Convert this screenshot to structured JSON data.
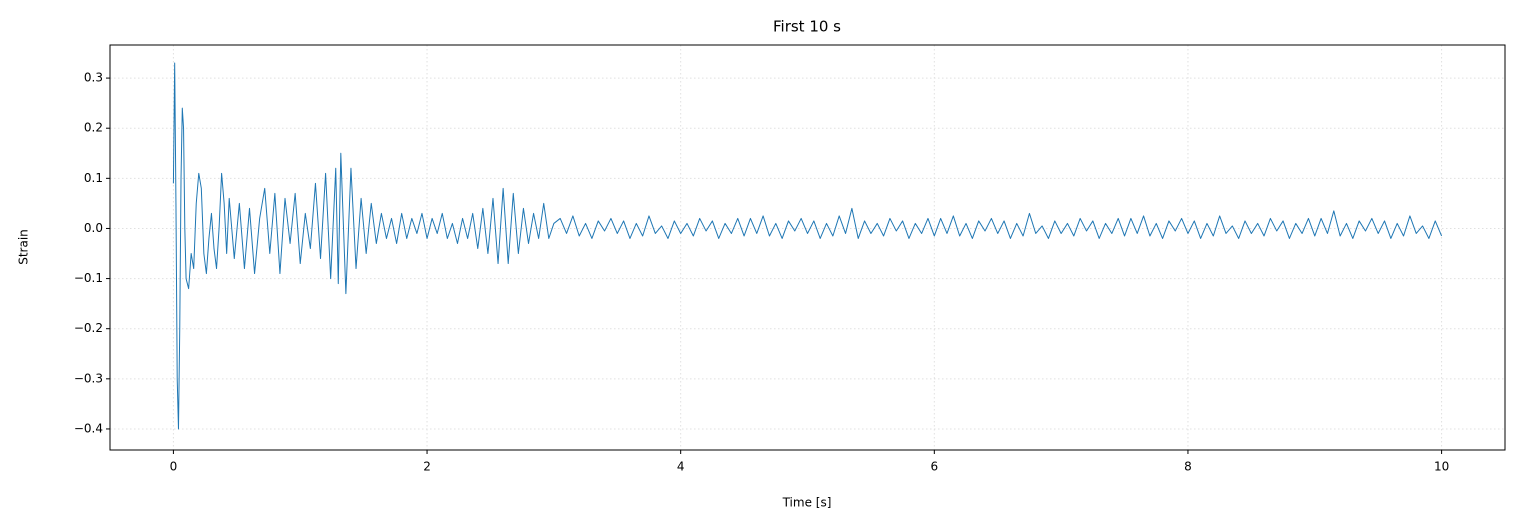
{
  "chart_data": {
    "type": "line",
    "title": "First 10 s",
    "xlabel": "Time [s]",
    "ylabel": "Strain",
    "xlim": [
      -0.5,
      10.5
    ],
    "xticks": [
      0,
      2,
      4,
      6,
      8,
      10
    ],
    "ylim": [
      -0.442,
      0.366
    ],
    "yticks": [
      {
        "value": -0.4,
        "label": "−0.4"
      },
      {
        "value": -0.3,
        "label": "−0.3"
      },
      {
        "value": -0.2,
        "label": "−0.2"
      },
      {
        "value": -0.1,
        "label": "−0.1"
      },
      {
        "value": 0.0,
        "label": "0.0"
      },
      0.1,
      0.2,
      0.3
    ],
    "grid": true,
    "x": [
      0,
      0.01,
      0.02,
      0.03,
      0.04,
      0.05,
      0.06,
      0.07,
      0.08,
      0.09,
      0.1,
      0.12,
      0.14,
      0.16,
      0.18,
      0.2,
      0.22,
      0.24,
      0.26,
      0.28,
      0.3,
      0.32,
      0.34,
      0.36,
      0.38,
      0.4,
      0.42,
      0.44,
      0.48,
      0.52,
      0.56,
      0.6,
      0.64,
      0.68,
      0.72,
      0.76,
      0.8,
      0.84,
      0.88,
      0.92,
      0.96,
      1.0,
      1.04,
      1.08,
      1.12,
      1.16,
      1.2,
      1.24,
      1.28,
      1.3,
      1.32,
      1.36,
      1.4,
      1.44,
      1.48,
      1.52,
      1.56,
      1.6,
      1.64,
      1.68,
      1.72,
      1.76,
      1.8,
      1.84,
      1.88,
      1.92,
      1.96,
      2.0,
      2.04,
      2.08,
      2.12,
      2.16,
      2.2,
      2.24,
      2.28,
      2.32,
      2.36,
      2.4,
      2.44,
      2.48,
      2.52,
      2.56,
      2.6,
      2.64,
      2.68,
      2.72,
      2.76,
      2.8,
      2.84,
      2.88,
      2.92,
      2.96,
      3.0,
      3.05,
      3.1,
      3.15,
      3.2,
      3.25,
      3.3,
      3.35,
      3.4,
      3.45,
      3.5,
      3.55,
      3.6,
      3.65,
      3.7,
      3.75,
      3.8,
      3.85,
      3.9,
      3.95,
      4.0,
      4.05,
      4.1,
      4.15,
      4.2,
      4.25,
      4.3,
      4.35,
      4.4,
      4.45,
      4.5,
      4.55,
      4.6,
      4.65,
      4.7,
      4.75,
      4.8,
      4.85,
      4.9,
      4.95,
      5.0,
      5.05,
      5.1,
      5.15,
      5.2,
      5.25,
      5.3,
      5.35,
      5.4,
      5.45,
      5.5,
      5.55,
      5.6,
      5.65,
      5.7,
      5.75,
      5.8,
      5.85,
      5.9,
      5.95,
      6.0,
      6.05,
      6.1,
      6.15,
      6.2,
      6.25,
      6.3,
      6.35,
      6.4,
      6.45,
      6.5,
      6.55,
      6.6,
      6.65,
      6.7,
      6.75,
      6.8,
      6.85,
      6.9,
      6.95,
      7.0,
      7.05,
      7.1,
      7.15,
      7.2,
      7.25,
      7.3,
      7.35,
      7.4,
      7.45,
      7.5,
      7.55,
      7.6,
      7.65,
      7.7,
      7.75,
      7.8,
      7.85,
      7.9,
      7.95,
      8.0,
      8.05,
      8.1,
      8.15,
      8.2,
      8.25,
      8.3,
      8.35,
      8.4,
      8.45,
      8.5,
      8.55,
      8.6,
      8.65,
      8.7,
      8.75,
      8.8,
      8.85,
      8.9,
      8.95,
      9.0,
      9.05,
      9.1,
      9.15,
      9.2,
      9.25,
      9.3,
      9.35,
      9.4,
      9.45,
      9.5,
      9.55,
      9.6,
      9.65,
      9.7,
      9.75,
      9.8,
      9.85,
      9.9,
      9.95,
      10.0
    ],
    "series": [
      {
        "name": "Strain",
        "color": "#1f77b4",
        "values": [
          0.09,
          0.33,
          0.05,
          -0.3,
          -0.4,
          -0.2,
          0.1,
          0.24,
          0.2,
          0.0,
          -0.1,
          -0.12,
          -0.05,
          -0.08,
          0.05,
          0.11,
          0.08,
          -0.05,
          -0.09,
          -0.02,
          0.03,
          -0.04,
          -0.08,
          0.0,
          0.11,
          0.05,
          -0.05,
          0.06,
          -0.06,
          0.05,
          -0.08,
          0.04,
          -0.09,
          0.02,
          0.08,
          -0.05,
          0.07,
          -0.09,
          0.06,
          -0.03,
          0.07,
          -0.07,
          0.03,
          -0.04,
          0.09,
          -0.06,
          0.11,
          -0.1,
          0.12,
          -0.11,
          0.15,
          -0.13,
          0.12,
          -0.08,
          0.06,
          -0.05,
          0.05,
          -0.03,
          0.03,
          -0.02,
          0.02,
          -0.03,
          0.03,
          -0.02,
          0.02,
          -0.01,
          0.03,
          -0.02,
          0.02,
          -0.01,
          0.03,
          -0.02,
          0.01,
          -0.03,
          0.02,
          -0.02,
          0.03,
          -0.04,
          0.04,
          -0.05,
          0.06,
          -0.07,
          0.08,
          -0.07,
          0.07,
          -0.05,
          0.04,
          -0.03,
          0.03,
          -0.02,
          0.05,
          -0.02,
          0.01,
          0.02,
          -0.01,
          0.025,
          -0.015,
          0.01,
          -0.02,
          0.015,
          -0.005,
          0.02,
          -0.01,
          0.015,
          -0.02,
          0.01,
          -0.015,
          0.025,
          -0.01,
          0.005,
          -0.02,
          0.015,
          -0.01,
          0.01,
          -0.015,
          0.02,
          -0.005,
          0.015,
          -0.02,
          0.01,
          -0.01,
          0.02,
          -0.015,
          0.02,
          -0.01,
          0.025,
          -0.015,
          0.01,
          -0.02,
          0.015,
          -0.005,
          0.02,
          -0.01,
          0.015,
          -0.02,
          0.01,
          -0.015,
          0.025,
          -0.01,
          0.04,
          -0.02,
          0.015,
          -0.01,
          0.01,
          -0.015,
          0.02,
          -0.005,
          0.015,
          -0.02,
          0.01,
          -0.01,
          0.02,
          -0.015,
          0.02,
          -0.01,
          0.025,
          -0.015,
          0.01,
          -0.02,
          0.015,
          -0.005,
          0.02,
          -0.01,
          0.015,
          -0.02,
          0.01,
          -0.015,
          0.03,
          -0.01,
          0.005,
          -0.02,
          0.015,
          -0.01,
          0.01,
          -0.015,
          0.02,
          -0.005,
          0.015,
          -0.02,
          0.01,
          -0.01,
          0.02,
          -0.015,
          0.02,
          -0.01,
          0.025,
          -0.015,
          0.01,
          -0.02,
          0.015,
          -0.005,
          0.02,
          -0.01,
          0.015,
          -0.02,
          0.01,
          -0.015,
          0.025,
          -0.01,
          0.005,
          -0.02,
          0.015,
          -0.01,
          0.01,
          -0.015,
          0.02,
          -0.005,
          0.015,
          -0.02,
          0.01,
          -0.01,
          0.02,
          -0.015,
          0.02,
          -0.01,
          0.035,
          -0.015,
          0.01,
          -0.02,
          0.015,
          -0.005,
          0.02,
          -0.01,
          0.015,
          -0.02,
          0.01,
          -0.015,
          0.025,
          -0.01,
          0.005,
          -0.02,
          0.015,
          -0.015
        ]
      }
    ]
  }
}
